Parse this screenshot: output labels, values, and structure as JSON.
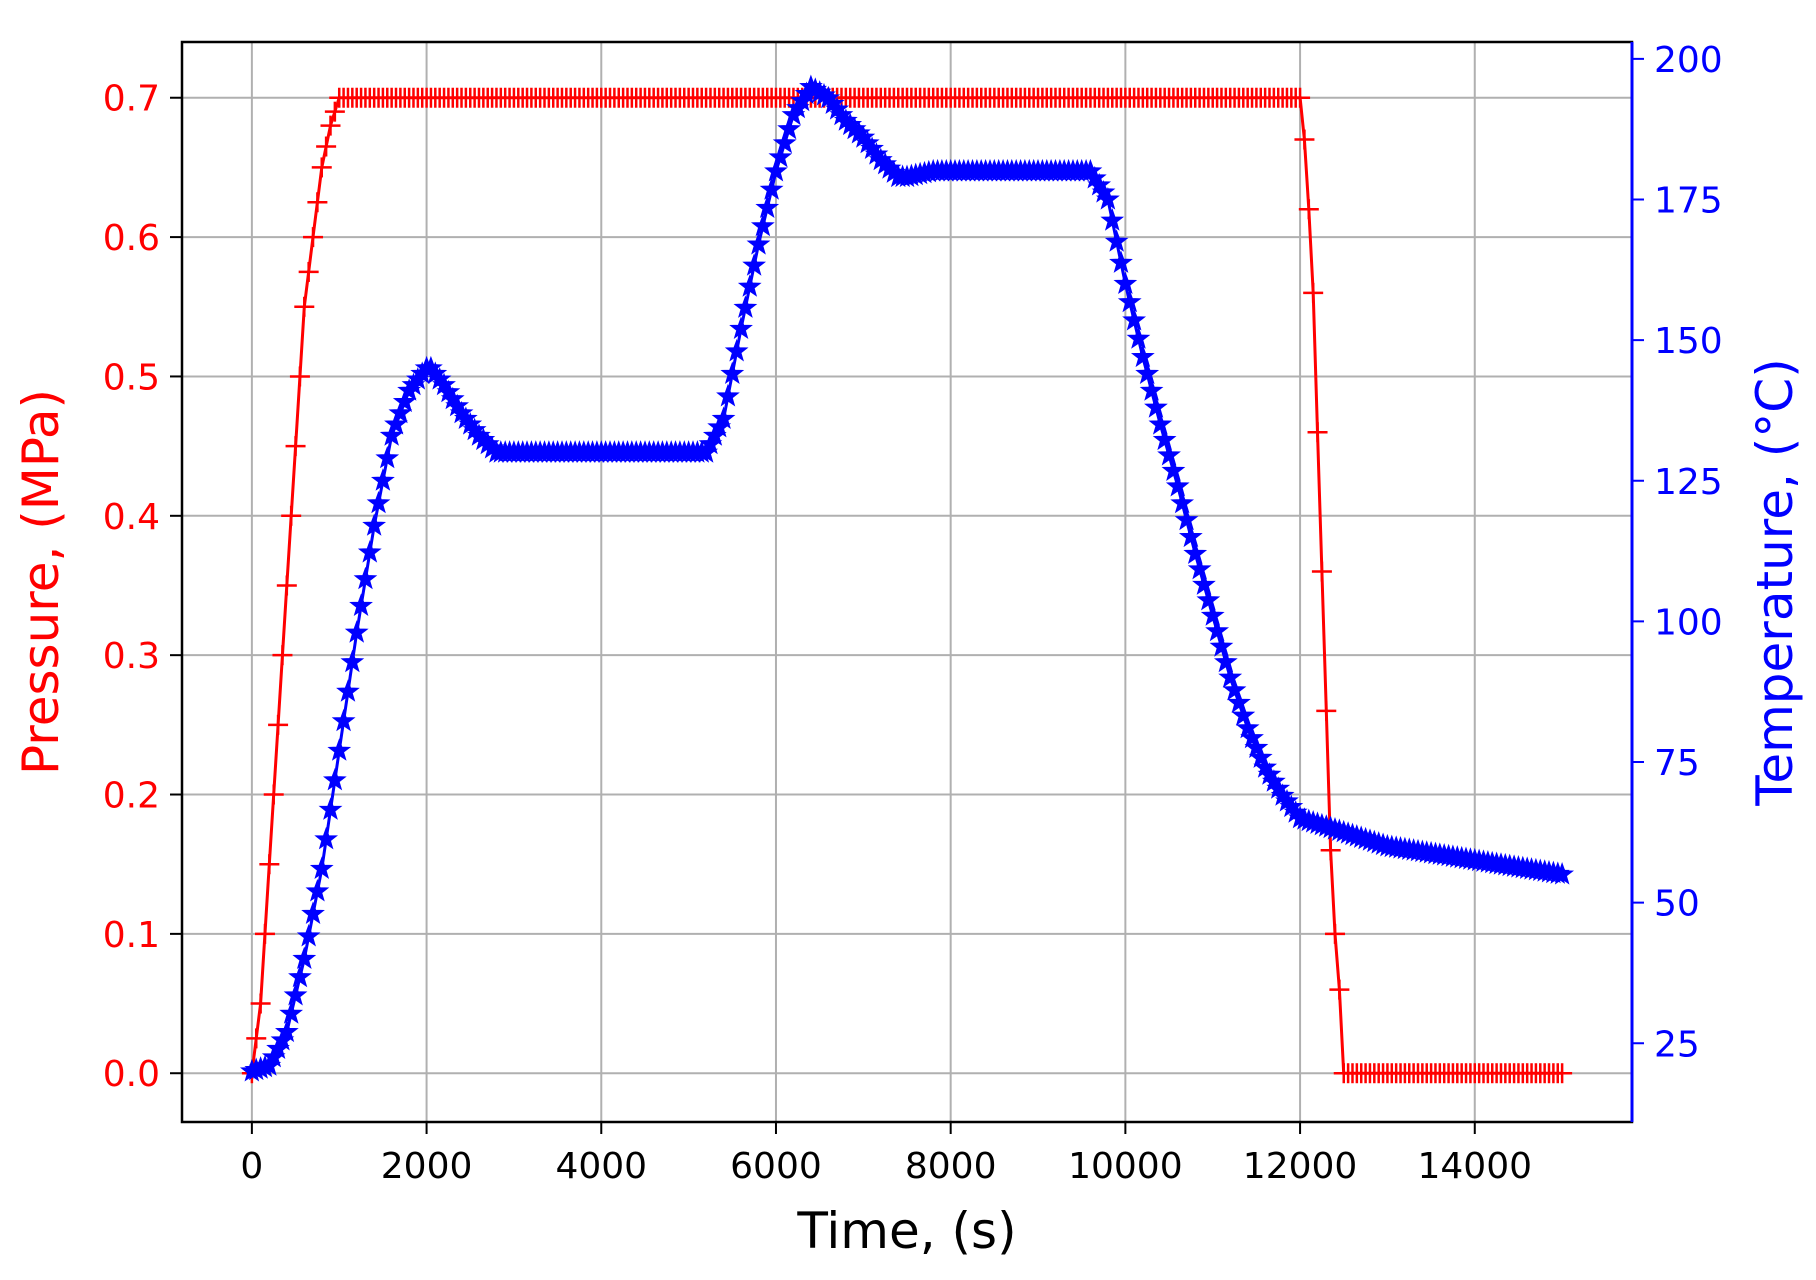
{
  "chart_data": {
    "type": "line",
    "xlabel": "Time, (s)",
    "ylabel_left": "Pressure, (MPa)",
    "ylabel_right": "Temperature, (°C)",
    "xlim": [
      -800,
      15800
    ],
    "ylim_left": [
      -0.035,
      0.74
    ],
    "ylim_right": [
      11,
      203
    ],
    "xticks": [
      0,
      2000,
      4000,
      6000,
      8000,
      10000,
      12000,
      14000
    ],
    "xtick_labels": [
      "0",
      "2000",
      "4000",
      "6000",
      "8000",
      "10000",
      "12000",
      "14000"
    ],
    "yticks_left": [
      0.0,
      0.1,
      0.2,
      0.3,
      0.4,
      0.5,
      0.6,
      0.7
    ],
    "ytick_labels_left": [
      "0.0",
      "0.1",
      "0.2",
      "0.3",
      "0.4",
      "0.5",
      "0.6",
      "0.7"
    ],
    "yticks_right": [
      25,
      50,
      75,
      100,
      125,
      150,
      175,
      200
    ],
    "ytick_labels_right": [
      "25",
      "50",
      "75",
      "100",
      "125",
      "150",
      "175",
      "200"
    ],
    "grid": true,
    "series": [
      {
        "axis": "left",
        "color": "#ff0000",
        "marker": "plus",
        "x": [
          0,
          100,
          200,
          300,
          400,
          500,
          600,
          700,
          800,
          900,
          1000,
          1100,
          1200,
          1300,
          1400,
          1500,
          1600,
          1700,
          1800,
          2000,
          2500,
          3000,
          3500,
          4000,
          4500,
          5000,
          5500,
          6000,
          6500,
          7000,
          7500,
          8000,
          8500,
          9000,
          9500,
          10000,
          10500,
          11000,
          11500,
          12000,
          12050,
          12100,
          12150,
          12200,
          12250,
          12300,
          12350,
          12400,
          12450,
          12500,
          13000,
          13500,
          14000,
          14500,
          15000
        ],
        "values": [
          0.0,
          0.05,
          0.15,
          0.25,
          0.35,
          0.45,
          0.55,
          0.6,
          0.65,
          0.68,
          0.7,
          0.7,
          0.7,
          0.7,
          0.7,
          0.7,
          0.7,
          0.7,
          0.7,
          0.7,
          0.7,
          0.7,
          0.7,
          0.7,
          0.7,
          0.7,
          0.7,
          0.7,
          0.7,
          0.7,
          0.7,
          0.7,
          0.7,
          0.7,
          0.7,
          0.7,
          0.7,
          0.7,
          0.7,
          0.7,
          0.67,
          0.62,
          0.56,
          0.46,
          0.36,
          0.26,
          0.16,
          0.1,
          0.06,
          0.0,
          0.0,
          0.0,
          0.0,
          0.0,
          0.0
        ]
      },
      {
        "axis": "right",
        "color": "#0000ff",
        "marker": "star",
        "x": [
          0,
          200,
          400,
          600,
          800,
          1000,
          1200,
          1400,
          1600,
          1800,
          2000,
          2050,
          2200,
          2400,
          2600,
          2800,
          2900,
          3200,
          3600,
          4000,
          4400,
          4800,
          5200,
          5400,
          5600,
          5800,
          6000,
          6200,
          6400,
          6600,
          6800,
          7000,
          7200,
          7400,
          7500,
          7800,
          8200,
          8600,
          9000,
          9400,
          9600,
          9800,
          10000,
          10200,
          10400,
          10600,
          10800,
          11000,
          11200,
          11400,
          11600,
          11800,
          12000,
          12200,
          12400,
          12600,
          12800,
          13000,
          13400,
          13800,
          14200,
          14600,
          15000
        ],
        "values": [
          20,
          21,
          27,
          40,
          56,
          77,
          98,
          117,
          133,
          141,
          145,
          145,
          142,
          137,
          133,
          130,
          130,
          130,
          130,
          130,
          130,
          130,
          130,
          136,
          152,
          167,
          180,
          190,
          195,
          193,
          189,
          186,
          182,
          179,
          179,
          180,
          180,
          180,
          180,
          180,
          180,
          175,
          160,
          147,
          135,
          124,
          112,
          101,
          90,
          81,
          74,
          69,
          65,
          64,
          63,
          62,
          61,
          60,
          59,
          58,
          57,
          56,
          55
        ]
      }
    ]
  }
}
